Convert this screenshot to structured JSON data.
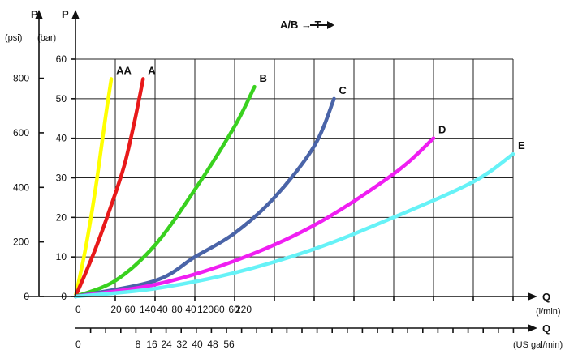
{
  "chart_data": {
    "type": "line",
    "title": "A/B → T",
    "y_axes": [
      {
        "label": "P",
        "unit": "(psi)",
        "ticks": [
          "0",
          "200",
          "400",
          "600",
          "800"
        ],
        "values": [
          0,
          200,
          400,
          600,
          800
        ],
        "range": [
          0,
          870
        ]
      },
      {
        "label": "P",
        "unit": "(bar)",
        "ticks": [
          "0",
          "10",
          "20",
          "30",
          "40",
          "50",
          "60"
        ],
        "values": [
          0,
          10,
          20,
          30,
          40,
          50,
          60
        ],
        "range": [
          0,
          60
        ]
      }
    ],
    "x_axes": [
      {
        "label": "Q",
        "unit": "(l/min)",
        "ticks": [
          "0",
          "20",
          "60",
          "140",
          "40",
          "80",
          "40",
          "120",
          "80",
          "60",
          "220",
          "200"
        ],
        "range": [
          0,
          220
        ]
      },
      {
        "label": "Q",
        "unit": "(US gal/min)",
        "ticks": [
          "0",
          "8",
          "16",
          "24",
          "32",
          "40",
          "48",
          "56"
        ],
        "range": [
          0,
          58
        ]
      }
    ],
    "grid": true,
    "xlim": [
      0,
      220
    ],
    "ylim": [
      0,
      60
    ],
    "series": [
      {
        "name": "AA",
        "color": "#ffff00",
        "x": [
          0,
          5,
          10,
          15,
          18
        ],
        "y": [
          0,
          12,
          27,
          45,
          55
        ]
      },
      {
        "name": "A",
        "color": "#e8191a",
        "x": [
          0,
          10,
          20,
          25,
          30,
          34
        ],
        "y": [
          0,
          12,
          26,
          34,
          45,
          55
        ]
      },
      {
        "name": "B",
        "color": "#39d11f",
        "x": [
          0,
          20,
          40,
          60,
          80,
          90
        ],
        "y": [
          0,
          4,
          13,
          27,
          43,
          53
        ]
      },
      {
        "name": "C",
        "color": "#4a64a8",
        "x": [
          0,
          40,
          60,
          80,
          100,
          120,
          130
        ],
        "y": [
          0,
          4,
          10,
          16,
          25,
          38,
          50
        ]
      },
      {
        "name": "D",
        "color": "#f01ef2",
        "x": [
          0,
          40,
          80,
          120,
          160,
          180
        ],
        "y": [
          0,
          3,
          9,
          18,
          31,
          40
        ]
      },
      {
        "name": "E",
        "color": "#66f2f7",
        "x": [
          0,
          40,
          80,
          120,
          160,
          200,
          220
        ],
        "y": [
          0,
          2,
          6,
          12,
          20,
          29,
          36
        ]
      }
    ]
  }
}
